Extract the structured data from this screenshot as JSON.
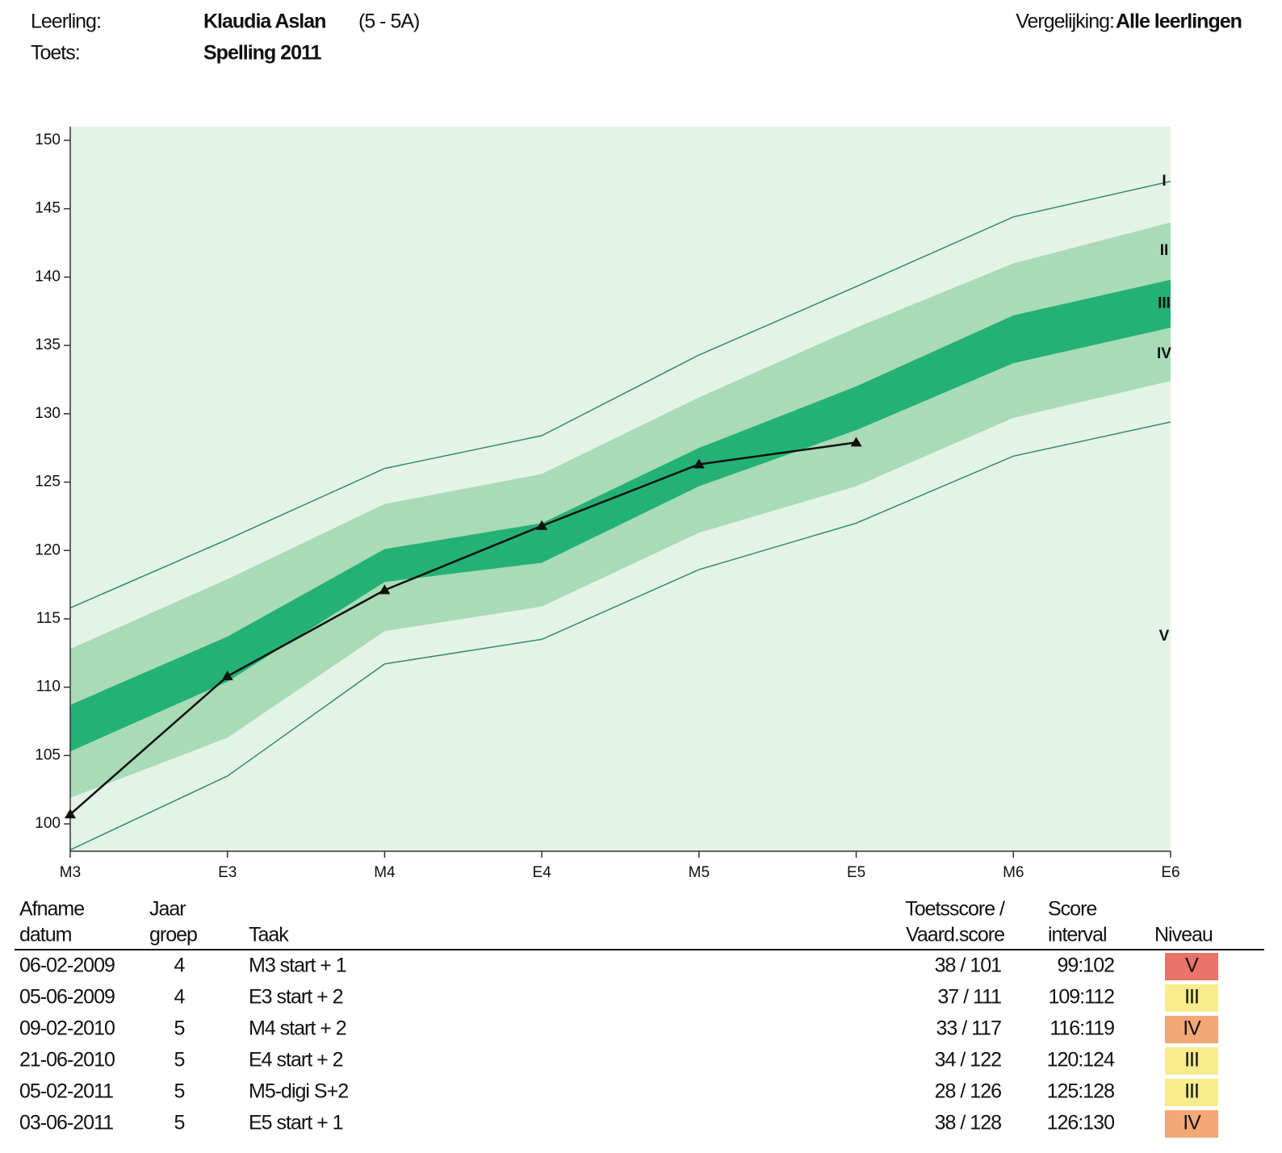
{
  "header": {
    "student_label": "Leerling:",
    "student_name": "Klaudia Aslan",
    "student_group": "(5 - 5A)",
    "test_label": "Toets:",
    "test_name": "Spelling 2011",
    "comparison_label": "Vergelijking:",
    "comparison_value": "Alle leerlingen"
  },
  "chart_data": {
    "type": "line",
    "categories": [
      "M3",
      "E3",
      "M4",
      "E4",
      "M5",
      "E5",
      "M6",
      "E6"
    ],
    "values": [
      100.7,
      110.8,
      117.1,
      121.8,
      126.3,
      127.9,
      null,
      null
    ],
    "color": "#111111",
    "ylim": [
      98,
      151
    ],
    "yticks": [
      100,
      105,
      110,
      115,
      120,
      125,
      130,
      135,
      140,
      145,
      150
    ],
    "bands": {
      "upper_line": [
        115.8,
        120.8,
        126.0,
        128.4,
        134.3,
        139.3,
        144.4,
        147.0
      ],
      "light_top": [
        112.8,
        117.9,
        123.4,
        125.6,
        131.2,
        136.3,
        141.0,
        144.0
      ],
      "dark_top": [
        108.7,
        113.7,
        120.1,
        122.0,
        127.5,
        132.0,
        137.2,
        139.8
      ],
      "dark_bottom": [
        105.3,
        110.4,
        117.7,
        119.1,
        124.7,
        128.8,
        133.7,
        136.3
      ],
      "light_bottom": [
        101.9,
        106.3,
        114.1,
        115.9,
        121.3,
        124.7,
        129.7,
        132.4
      ],
      "lower_line": [
        98.1,
        103.5,
        111.7,
        113.5,
        118.6,
        122.0,
        126.9,
        129.4
      ]
    },
    "band_colors": {
      "background": "#e4f3e7",
      "light": "#a9dbb6",
      "dark": "#24b176",
      "line": "#2f8e6b"
    },
    "levels": [
      "I",
      "II",
      "III",
      "IV",
      "V"
    ]
  },
  "table": {
    "headers": [
      [
        "Afname",
        "datum"
      ],
      [
        "Jaar",
        "groep"
      ],
      [
        "Taak"
      ],
      [
        "Toetsscore /",
        "Vaard.score"
      ],
      [
        "Score",
        "interval"
      ],
      [
        "Niveau"
      ]
    ],
    "rows": [
      [
        "06-02-2009",
        "4",
        "M3 start + 1",
        "38 / 101",
        "99:102",
        "V"
      ],
      [
        "05-06-2009",
        "4",
        "E3 start + 2",
        "37 / 111",
        "109:112",
        "III"
      ],
      [
        "09-02-2010",
        "5",
        "M4 start + 2",
        "33 / 117",
        "116:119",
        "IV"
      ],
      [
        "21-06-2010",
        "5",
        "E4 start + 2",
        "34 / 122",
        "120:124",
        "III"
      ],
      [
        "05-02-2011",
        "5",
        "M5-digi S+2",
        "28 / 126",
        "125:128",
        "III"
      ],
      [
        "03-06-2011",
        "5",
        "E5 start + 1",
        "38 / 128",
        "126:130",
        "IV"
      ]
    ],
    "level_colors": {
      "V": "#e8736b",
      "IV": "#f4a877",
      "III": "#f8ec8e"
    }
  }
}
